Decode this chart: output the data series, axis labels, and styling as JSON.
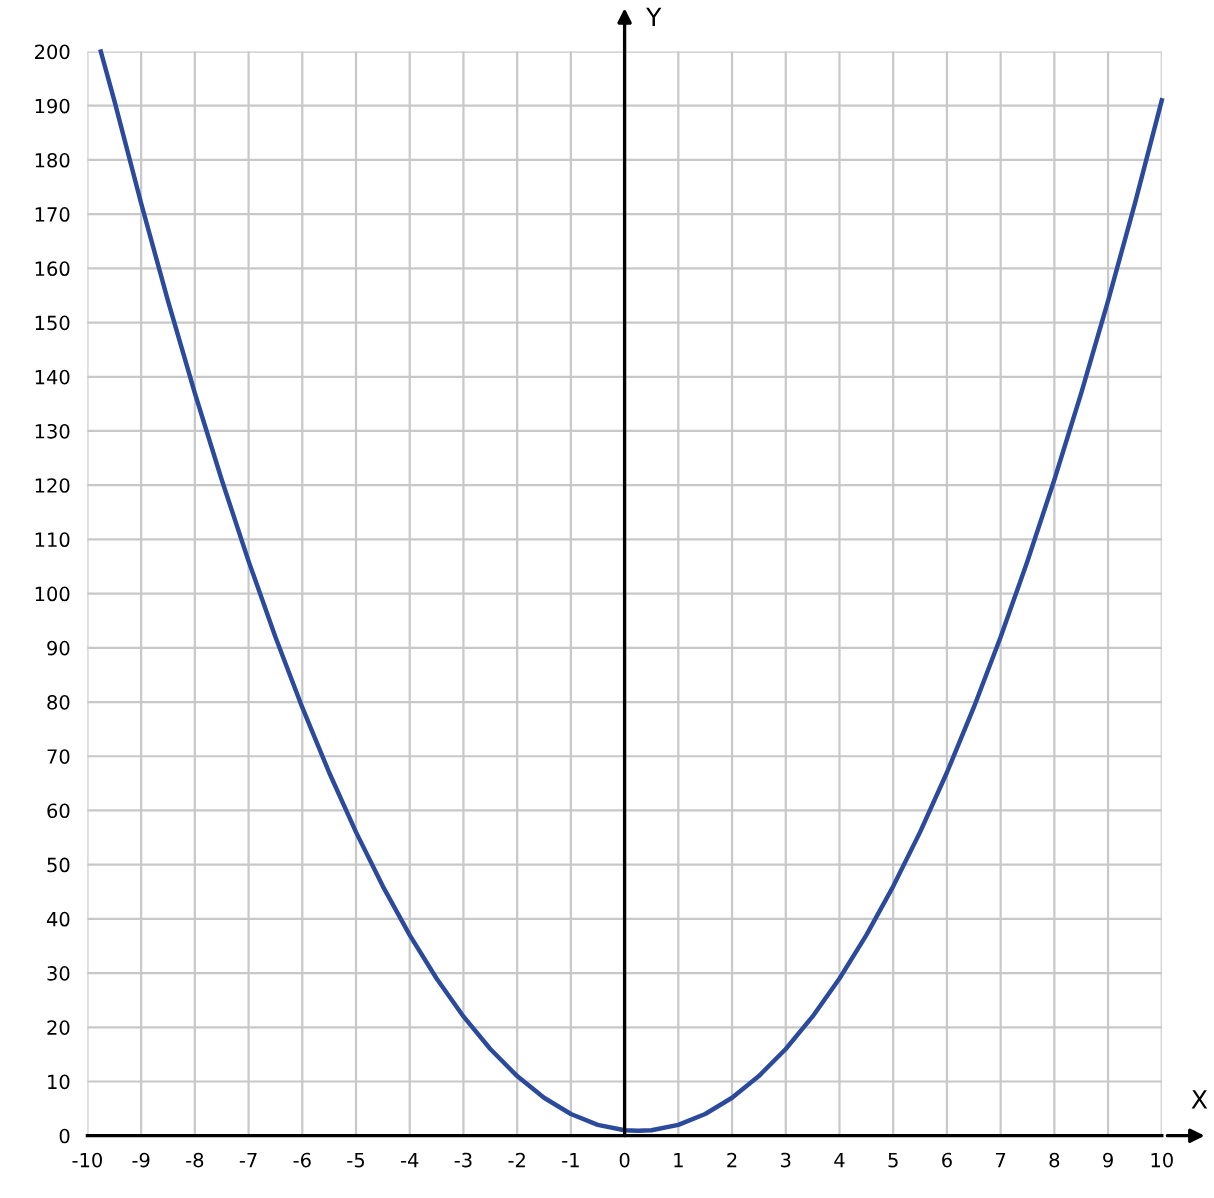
{
  "chart_data": {
    "type": "line",
    "xlabel": "X",
    "ylabel": "Y",
    "x": [
      -9.75,
      -9.5,
      -9,
      -8.5,
      -8,
      -7.5,
      -7,
      -6.5,
      -6,
      -5.5,
      -5,
      -4.5,
      -4,
      -3.5,
      -3,
      -2.5,
      -2,
      -1.5,
      -1,
      -0.5,
      0,
      0.25,
      0.5,
      1,
      1.5,
      2,
      2.5,
      3,
      3.5,
      4,
      4.5,
      5,
      5.5,
      6,
      6.5,
      7,
      7.5,
      8,
      8.5,
      9,
      9.5,
      10
    ],
    "series": [
      {
        "color": "#2b4a9c",
        "values": [
          200,
          191,
          172,
          154,
          137,
          121,
          106,
          92,
          79,
          67,
          56,
          46,
          37,
          29,
          22,
          16,
          11,
          7,
          4,
          2,
          1,
          0.9,
          1,
          2,
          4,
          7,
          11,
          16,
          22,
          29,
          37,
          46,
          56,
          67,
          79,
          92,
          106,
          121,
          137,
          154,
          172,
          191
        ]
      }
    ],
    "xlim": [
      -10,
      10
    ],
    "ylim": [
      0,
      200
    ],
    "xticks": [
      -10,
      -9,
      -8,
      -7,
      -6,
      -5,
      -4,
      -3,
      -2,
      -1,
      0,
      1,
      2,
      3,
      4,
      5,
      6,
      7,
      8,
      9,
      10
    ],
    "yticks": [
      0,
      10,
      20,
      30,
      40,
      50,
      60,
      70,
      80,
      90,
      100,
      110,
      120,
      130,
      140,
      150,
      160,
      170,
      180,
      190,
      200
    ],
    "grid": true,
    "marker": "none",
    "line_style": "solid",
    "legend": false
  }
}
